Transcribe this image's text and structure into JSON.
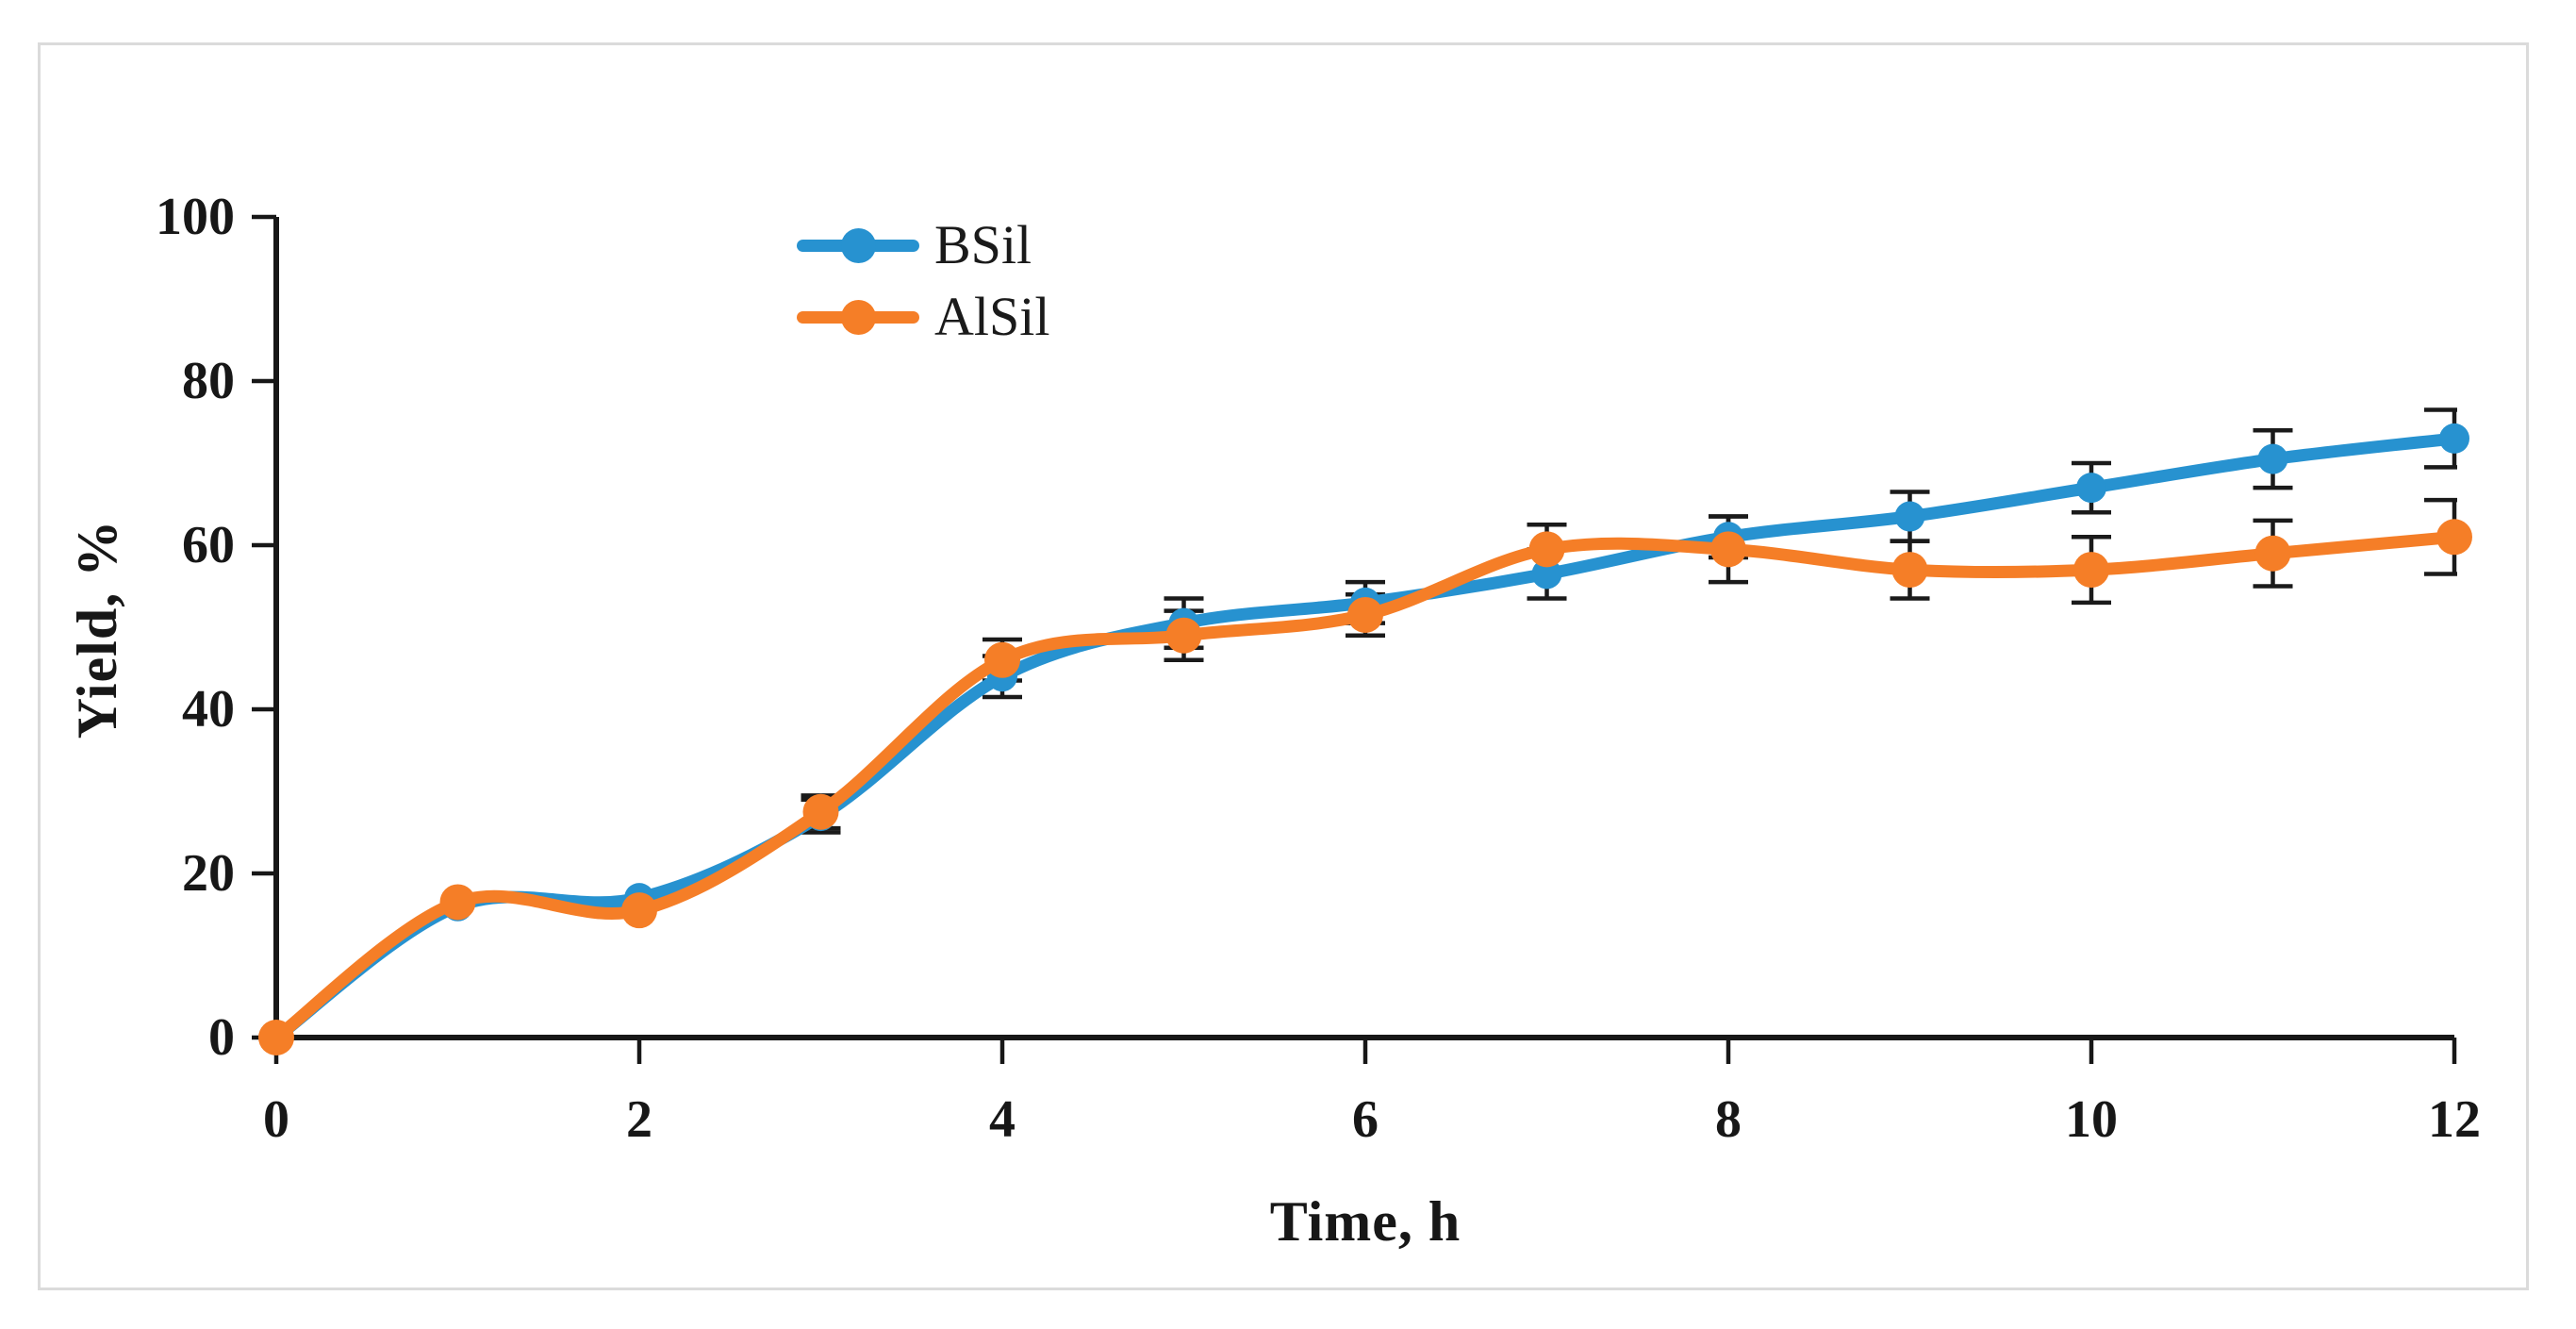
{
  "figure": {
    "background": "#ffffff",
    "border_color": "#dbdbdb",
    "text_color": "#171717"
  },
  "chart_data": {
    "type": "line",
    "title": "",
    "xlabel": "Time, h",
    "ylabel": "Yield, %",
    "xlim": [
      0,
      12
    ],
    "ylim": [
      0,
      100
    ],
    "x_ticks": [
      0,
      2,
      4,
      6,
      8,
      10,
      12
    ],
    "y_ticks": [
      0,
      20,
      40,
      60,
      80,
      100
    ],
    "grid": false,
    "legend_position": "top-center-inside",
    "error_bar_color": "#1a1a1a",
    "x": [
      0,
      1,
      2,
      3,
      4,
      5,
      6,
      7,
      8,
      9,
      10,
      11,
      12
    ],
    "series": [
      {
        "name": "BSil",
        "color": "#2792d0",
        "values": [
          0,
          16,
          17,
          27,
          44,
          50.5,
          53,
          56.5,
          61,
          63.5,
          67,
          70.5,
          73
        ],
        "errors": [
          0,
          0,
          0,
          2,
          2.5,
          3,
          2.5,
          3,
          2.5,
          3,
          3,
          3.5,
          3.5
        ]
      },
      {
        "name": "AlSil",
        "color": "#f57e27",
        "values": [
          0,
          16.5,
          15.5,
          27.5,
          46,
          49,
          51.5,
          59.5,
          59.5,
          57,
          57,
          59,
          61
        ],
        "errors": [
          0,
          0,
          0,
          2,
          2.5,
          3,
          2.5,
          3,
          4,
          3.5,
          4,
          4,
          4.5
        ]
      }
    ]
  },
  "legend": {
    "items": [
      {
        "label": "BSil"
      },
      {
        "label": "AlSil"
      }
    ]
  }
}
